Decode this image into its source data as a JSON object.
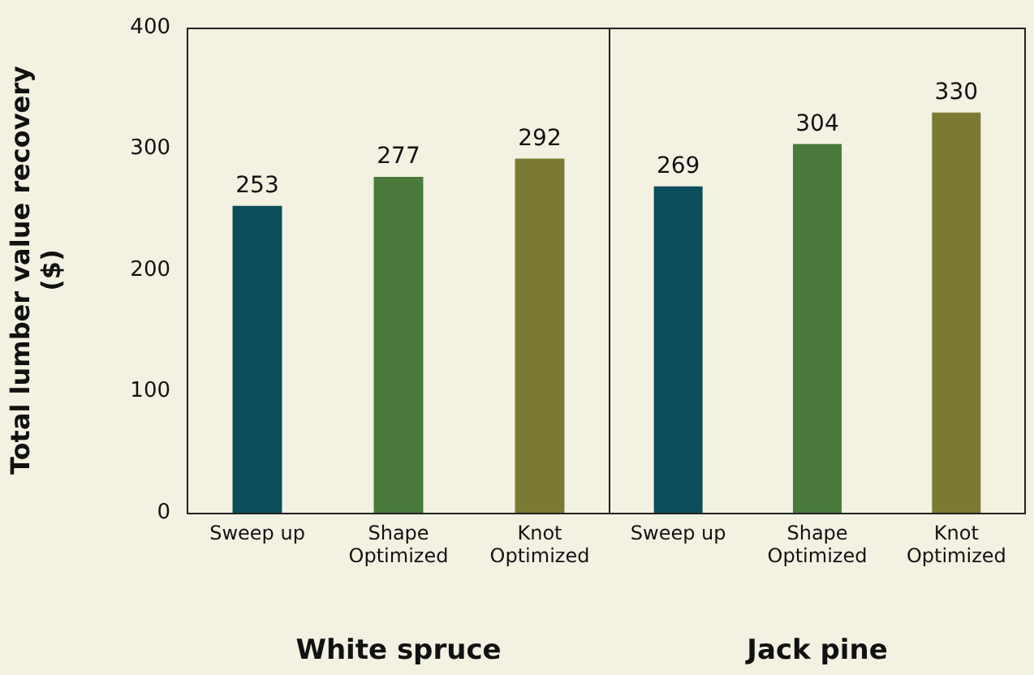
{
  "chart_data": [
    {
      "type": "bar",
      "xlabel": "White spruce",
      "ylabel": "Total lumber value recovery ($)",
      "categories": [
        "Sweep up",
        "Shape Optimized",
        "Knot Optimized"
      ],
      "values": [
        253,
        277,
        292
      ],
      "colors": [
        "#0b4d5a",
        "#4a7a3c",
        "#7b7a32"
      ],
      "ylim": [
        0,
        400
      ],
      "yticks": [
        0,
        100,
        200,
        300,
        400
      ],
      "data_labels": true,
      "grid": false,
      "legend": false
    },
    {
      "type": "bar",
      "xlabel": "Jack pine",
      "categories": [
        "Sweep up",
        "Shape Optimized",
        "Knot Optimized"
      ],
      "values": [
        269,
        304,
        330
      ],
      "colors": [
        "#0b4d5a",
        "#4a7a3c",
        "#7b7a32"
      ],
      "ylim": [
        0,
        400
      ],
      "yticks": [
        0,
        100,
        200,
        300,
        400
      ],
      "data_labels": true,
      "grid": false,
      "legend": false,
      "tick_labels": "x"
    }
  ]
}
